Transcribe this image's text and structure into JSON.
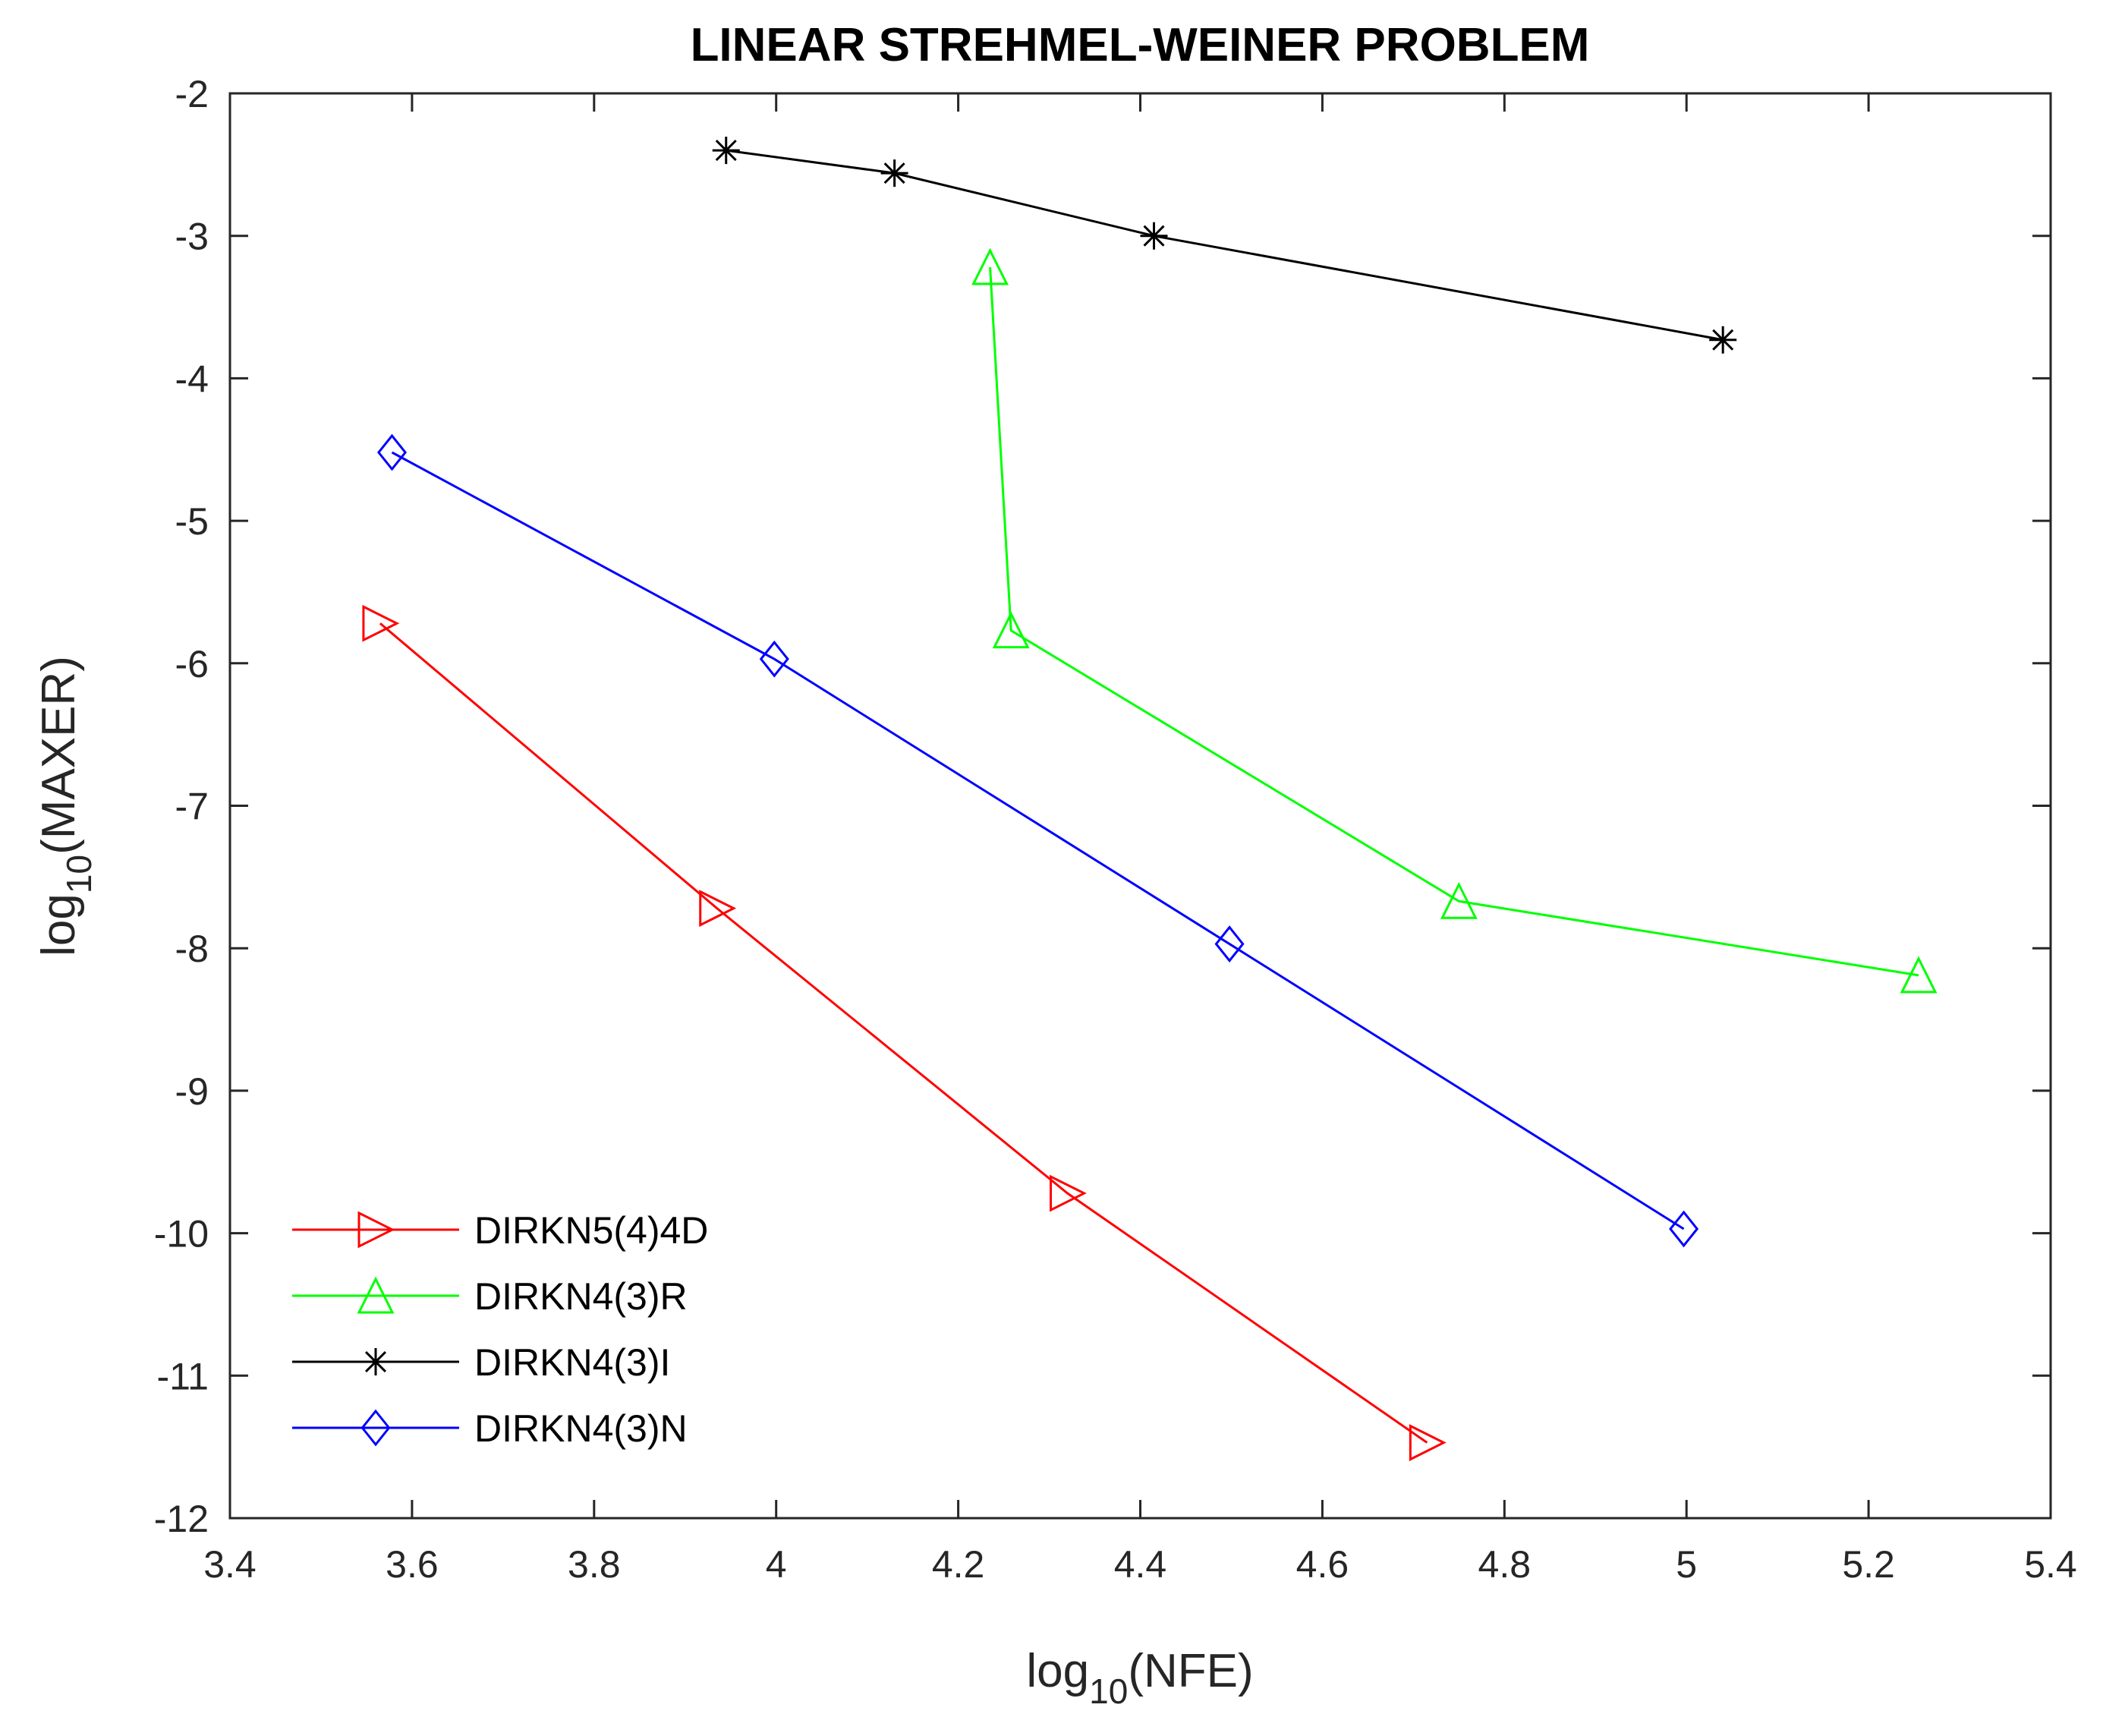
{
  "chart_data": {
    "type": "line",
    "title": "LINEAR STREHMEL-WEINER PROBLEM",
    "xlabel_main": "log",
    "xlabel_sub": "10",
    "xlabel_arg": "(NFE)",
    "ylabel_main": "log",
    "ylabel_sub": "10",
    "ylabel_arg": "(MAXER)",
    "xlim": [
      3.4,
      5.4
    ],
    "ylim": [
      -12,
      -2
    ],
    "xticks": [
      3.4,
      3.6,
      3.8,
      4,
      4.2,
      4.4,
      4.6,
      4.8,
      5,
      5.2,
      5.4
    ],
    "xtick_labels": [
      "3.4",
      "3.6",
      "3.8",
      "4",
      "4.2",
      "4.4",
      "4.6",
      "4.8",
      "5",
      "5.2",
      "5.4"
    ],
    "yticks": [
      -2,
      -3,
      -4,
      -5,
      -6,
      -7,
      -8,
      -9,
      -10,
      -11,
      -12
    ],
    "ytick_labels": [
      "-2",
      "-3",
      "-4",
      "-5",
      "-6",
      "-7",
      "-8",
      "-9",
      "-10",
      "-11",
      "-12"
    ],
    "legend_position": "bottom-left",
    "series": [
      {
        "name": "DIRKN5(4)4D",
        "color": "#ff0000",
        "marker": "triangle-right",
        "x": [
          3.565,
          3.935,
          4.32,
          4.715
        ],
        "y": [
          -5.72,
          -7.72,
          -9.72,
          -11.47
        ]
      },
      {
        "name": "DIRKN4(3)R",
        "color": "#00ff00",
        "marker": "triangle-up",
        "x": [
          4.235,
          4.258,
          4.75,
          5.255
        ],
        "y": [
          -3.22,
          -5.77,
          -7.67,
          -8.19
        ]
      },
      {
        "name": "DIRKN4(3)I",
        "color": "#000000",
        "marker": "asterisk",
        "x": [
          3.945,
          4.13,
          4.415,
          5.04
        ],
        "y": [
          -2.4,
          -2.56,
          -3.0,
          -3.73
        ]
      },
      {
        "name": "DIRKN4(3)N",
        "color": "#0000ff",
        "marker": "diamond",
        "x": [
          3.578,
          3.998,
          4.498,
          4.997
        ],
        "y": [
          -4.52,
          -5.97,
          -7.97,
          -9.97
        ]
      }
    ]
  }
}
